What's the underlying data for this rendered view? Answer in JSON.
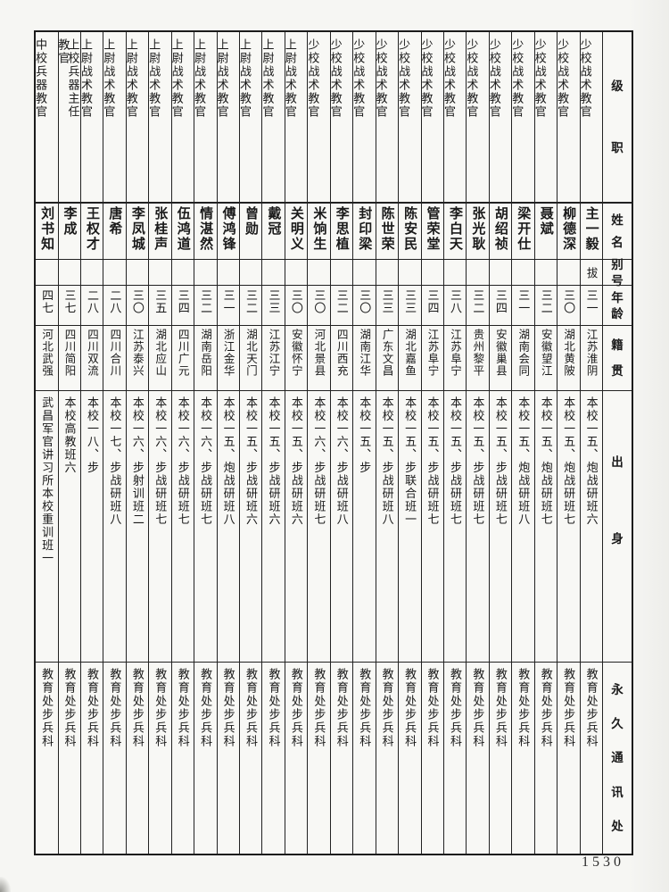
{
  "page_number": "1530",
  "table": {
    "headers": {
      "rank": "级职",
      "name": "姓名",
      "alias": "别号",
      "age": "年龄",
      "native_place": "籍贯",
      "origin": "出身",
      "address": "永久通讯处"
    },
    "people": [
      {
        "rank": "少校战术教官",
        "name": "主一毅",
        "alias": "拔",
        "age": "三一",
        "native_place": "江苏淮阴",
        "origin": "本校一五、炮战研班六",
        "address": "教育处步兵科"
      },
      {
        "rank": "少校战术教官",
        "name": "柳德深",
        "alias": "",
        "age": "三〇",
        "native_place": "湖北黄陂",
        "origin": "本校一五、炮战研班七",
        "address": "教育处步兵科"
      },
      {
        "rank": "少校战术教官",
        "name": "聂斌",
        "alias": "",
        "age": "三二",
        "native_place": "安徽望江",
        "origin": "本校一五、炮战研班七",
        "address": "教育处步兵科"
      },
      {
        "rank": "少校战术教官",
        "name": "梁开仕",
        "alias": "",
        "age": "三一",
        "native_place": "湖南会同",
        "origin": "本校一五、炮战研班八",
        "address": "教育处步兵科"
      },
      {
        "rank": "少校战术教官",
        "name": "胡绍祯",
        "alias": "",
        "age": "三四",
        "native_place": "安徽巢县",
        "origin": "本校一五、步战研班七",
        "address": "教育处步兵科"
      },
      {
        "rank": "少校战术教官",
        "name": "张光耿",
        "alias": "",
        "age": "三二",
        "native_place": "贵州黎平",
        "origin": "本校一五、步战研班七",
        "address": "教育处步兵科"
      },
      {
        "rank": "少校战术教官",
        "name": "李白天",
        "alias": "",
        "age": "三八",
        "native_place": "江苏阜宁",
        "origin": "本校一五、步战研班七",
        "address": "教育处步兵科"
      },
      {
        "rank": "少校战术教官",
        "name": "管荣堂",
        "alias": "",
        "age": "三四",
        "native_place": "江苏阜宁",
        "origin": "本校一五、步战研班七",
        "address": "教育处步兵科"
      },
      {
        "rank": "少校战术教官",
        "name": "陈安民",
        "alias": "",
        "age": "三三",
        "native_place": "湖北嘉鱼",
        "origin": "本校一五、步联合班一",
        "address": "教育处步兵科"
      },
      {
        "rank": "少校战术教官",
        "name": "陈世荣",
        "alias": "",
        "age": "三三",
        "native_place": "广东文昌",
        "origin": "本校一五、步战研班八",
        "address": "教育处步兵科"
      },
      {
        "rank": "少校战术教官",
        "name": "封印梁",
        "alias": "",
        "age": "三〇",
        "native_place": "湖南江华",
        "origin": "本校一五、步",
        "address": "教育处步兵科"
      },
      {
        "rank": "少校战术教官",
        "name": "李思植",
        "alias": "",
        "age": "三二",
        "native_place": "四川西充",
        "origin": "本校一六、步战研班八",
        "address": "教育处步兵科"
      },
      {
        "rank": "少校战术教官",
        "name": "米饷生",
        "alias": "",
        "age": "三〇",
        "native_place": "河北景县",
        "origin": "本校一六、步战研班七",
        "address": "教育处步兵科"
      },
      {
        "rank": "上尉战术教官",
        "name": "关明义",
        "alias": "",
        "age": "三〇",
        "native_place": "安徽怀宁",
        "origin": "本校一五、步战研班六",
        "address": "教育处步兵科"
      },
      {
        "rank": "上尉战术教官",
        "name": "戴冠",
        "alias": "",
        "age": "三三",
        "native_place": "江苏江宁",
        "origin": "本校一五、步战研班六",
        "address": "教育处步兵科"
      },
      {
        "rank": "上尉战术教官",
        "name": "曾勋",
        "alias": "",
        "age": "三二",
        "native_place": "湖北天门",
        "origin": "本校一五、步战研班六",
        "address": "教育处步兵科"
      },
      {
        "rank": "上尉战术教官",
        "name": "傅鸿锋",
        "alias": "",
        "age": "三一",
        "native_place": "浙江金华",
        "origin": "本校一五、炮战研班八",
        "address": "教育处步兵科"
      },
      {
        "rank": "上尉战术教官",
        "name": "情湛然",
        "alias": "",
        "age": "三二",
        "native_place": "湖南岳阳",
        "origin": "本校一六、步战研班七",
        "address": "教育处步兵科"
      },
      {
        "rank": "上尉战术教官",
        "name": "伍鸿道",
        "alias": "",
        "age": "三四",
        "native_place": "四川广元",
        "origin": "本校一六、步战研班七",
        "address": "教育处步兵科"
      },
      {
        "rank": "上尉战术教官",
        "name": "张桂声",
        "alias": "",
        "age": "三五",
        "native_place": "湖北应山",
        "origin": "本校一六、步战研班七",
        "address": "教育处步兵科"
      },
      {
        "rank": "上尉战术教官",
        "name": "李凤城",
        "alias": "",
        "age": "三〇",
        "native_place": "江苏泰兴",
        "origin": "本校一六、步射训班二",
        "address": "教育处步兵科"
      },
      {
        "rank": "上尉战术教官",
        "name": "唐希",
        "alias": "",
        "age": "二八",
        "native_place": "四川合川",
        "origin": "本校一七、步战研班八",
        "address": "教育处步兵科"
      },
      {
        "rank": "上尉战术教官",
        "name": "王权才",
        "alias": "",
        "age": "二八",
        "native_place": "四川双流",
        "origin": "本校一八、步",
        "address": "教育处步兵科"
      },
      {
        "rank": "上校兵器主任教官",
        "name": "李成",
        "alias": "",
        "age": "三七",
        "native_place": "四川简阳",
        "origin": "本校高教班六",
        "address": "教育处步兵科"
      },
      {
        "rank": "中校兵器教官",
        "name": "刘书知",
        "alias": "",
        "age": "四七",
        "native_place": "河北武强",
        "origin": "武昌军官讲习所本校重训班一",
        "address": "教育处步兵科"
      }
    ]
  }
}
